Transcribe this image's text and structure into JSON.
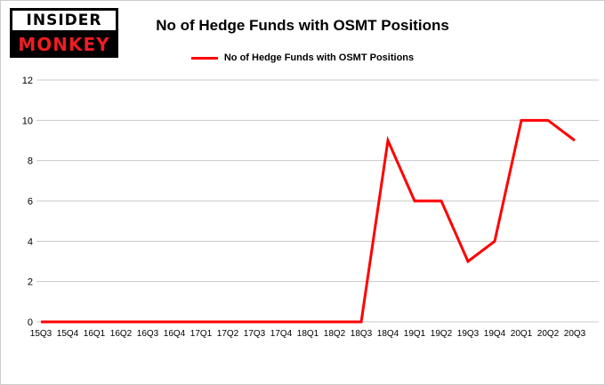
{
  "logo": {
    "line1": "INSIDER",
    "line2": "MONKEY"
  },
  "title": "No of Hedge Funds with OSMT Positions",
  "legend": {
    "label": "No of Hedge Funds with OSMT Positions"
  },
  "colors": {
    "line": "#ff0000",
    "grid": "#c8c8c8",
    "text": "#000000",
    "logo_red": "#ee1c25"
  },
  "chart_data": {
    "type": "line",
    "title": "No of Hedge Funds with OSMT Positions",
    "categories": [
      "15Q3",
      "15Q4",
      "16Q1",
      "16Q2",
      "16Q3",
      "16Q4",
      "17Q1",
      "17Q2",
      "17Q3",
      "17Q4",
      "18Q1",
      "18Q2",
      "18Q3",
      "18Q4",
      "19Q1",
      "19Q2",
      "19Q3",
      "19Q4",
      "20Q1",
      "20Q2",
      "20Q3"
    ],
    "series": [
      {
        "name": "No of Hedge Funds with OSMT Positions",
        "color": "#ff0000",
        "values": [
          0,
          0,
          0,
          0,
          0,
          0,
          0,
          0,
          0,
          0,
          0,
          0,
          0,
          9,
          6,
          6,
          3,
          4,
          10,
          10,
          9
        ]
      }
    ],
    "xlabel": "",
    "ylabel": "",
    "ylim": [
      0,
      12
    ],
    "ytick_step": 2,
    "grid": true,
    "legend_position": "top-center"
  }
}
